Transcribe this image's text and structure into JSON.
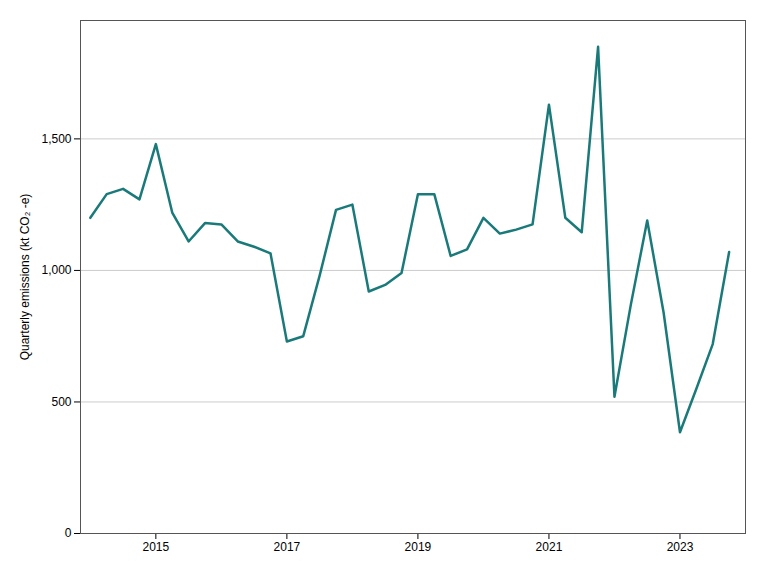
{
  "chart_data": {
    "type": "line",
    "ylabel": "Quarterly emissions (kt CO₂ -e)",
    "color": "#1a7a7a",
    "x": [
      2014.0,
      2014.25,
      2014.5,
      2014.75,
      2015.0,
      2015.25,
      2015.5,
      2015.75,
      2016.0,
      2016.25,
      2016.5,
      2016.75,
      2017.0,
      2017.25,
      2017.5,
      2017.75,
      2018.0,
      2018.25,
      2018.5,
      2018.75,
      2019.0,
      2019.25,
      2019.5,
      2019.75,
      2020.0,
      2020.25,
      2020.5,
      2020.75,
      2021.0,
      2021.25,
      2021.5,
      2021.75,
      2022.0,
      2022.25,
      2022.5,
      2022.75,
      2023.0,
      2023.25,
      2023.5,
      2023.75
    ],
    "values": [
      1200,
      1290,
      1310,
      1270,
      1480,
      1220,
      1110,
      1180,
      1175,
      1110,
      1090,
      1065,
      730,
      750,
      980,
      1230,
      1250,
      920,
      945,
      990,
      1290,
      1290,
      1055,
      1080,
      1200,
      1140,
      1155,
      1175,
      1630,
      1200,
      1145,
      1850,
      520,
      870,
      1190,
      840,
      385,
      550,
      720,
      1070
    ],
    "xlim": [
      2013.85,
      2024.0
    ],
    "xticks": [
      2015,
      2017,
      2019,
      2021,
      2023
    ],
    "ylim": [
      0,
      1950
    ],
    "yticks": [
      0,
      500,
      {
        "value": 1000,
        "label": "1,000"
      },
      {
        "value": 1500,
        "label": "1,500"
      }
    ],
    "grid": "y"
  }
}
